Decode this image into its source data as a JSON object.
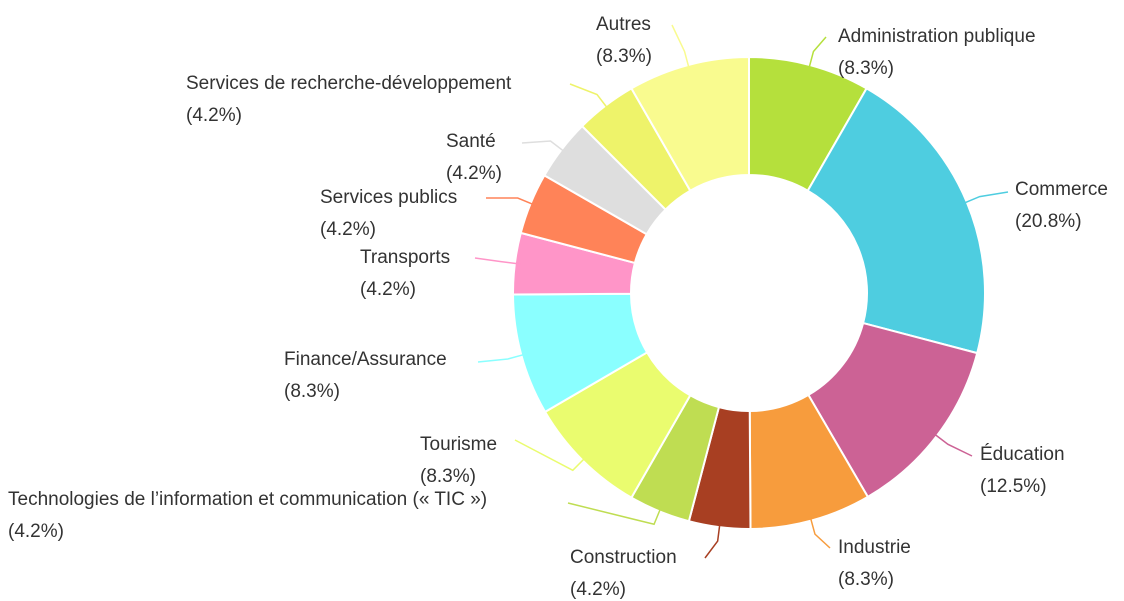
{
  "chart_data": {
    "type": "donut",
    "categories": [
      "Administration publique",
      "Commerce",
      "Éducation",
      "Industrie",
      "Construction",
      "Technologies de l’information et communication (« TIC »)",
      "Tourisme",
      "Finance/Assurance",
      "Transports",
      "Services publics",
      "Santé",
      "Services de recherche-développement",
      "Autres"
    ],
    "values": [
      8.3,
      20.8,
      12.5,
      8.3,
      4.2,
      4.2,
      8.3,
      8.3,
      4.2,
      4.2,
      4.2,
      4.2,
      8.3
    ],
    "value_labels": [
      "(8.3%)",
      "(20.8%)",
      "(12.5%)",
      "(8.3%)",
      "(4.2%)",
      "(4.2%)",
      "(8.3%)",
      "(8.3%)",
      "(4.2%)",
      "(4.2%)",
      "(4.2%)",
      "(4.2%)",
      "(8.3%)"
    ],
    "colors": [
      "#b5e03c",
      "#4ecde0",
      "#cc6295",
      "#f79c3d",
      "#a83f22",
      "#bfdd52",
      "#eafc6f",
      "#8affff",
      "#ff95c8",
      "#ff8358",
      "#dedede",
      "#eef36a",
      "#f9fb8f"
    ]
  }
}
